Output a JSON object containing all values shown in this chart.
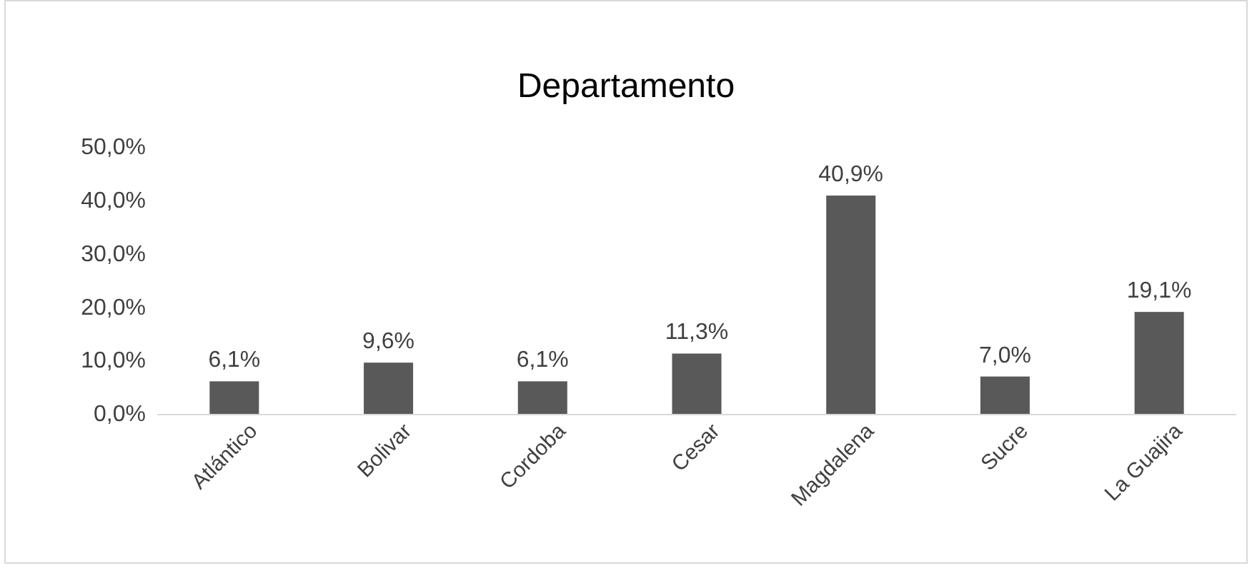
{
  "chart_data": {
    "type": "bar",
    "title": "Departamento",
    "categories": [
      "Atlántico",
      "Bolivar",
      "Cordoba",
      "Cesar",
      "Magdalena",
      "Sucre",
      "La Guajira"
    ],
    "values": [
      6.1,
      9.6,
      6.1,
      11.3,
      40.9,
      7.0,
      19.1
    ],
    "value_labels": [
      "6,1%",
      "9,6%",
      "6,1%",
      "11,3%",
      "40,9%",
      "7,0%",
      "19,1%"
    ],
    "color": "#595959",
    "ylim": [
      0,
      50
    ],
    "yticks": [
      {
        "value": 0,
        "label": "0,0%"
      },
      {
        "value": 10,
        "label": "10,0%"
      },
      {
        "value": 20,
        "label": "20,0%"
      },
      {
        "value": 30,
        "label": "30,0%"
      },
      {
        "value": 40,
        "label": "40,0%"
      },
      {
        "value": 50,
        "label": "50,0%"
      }
    ]
  }
}
